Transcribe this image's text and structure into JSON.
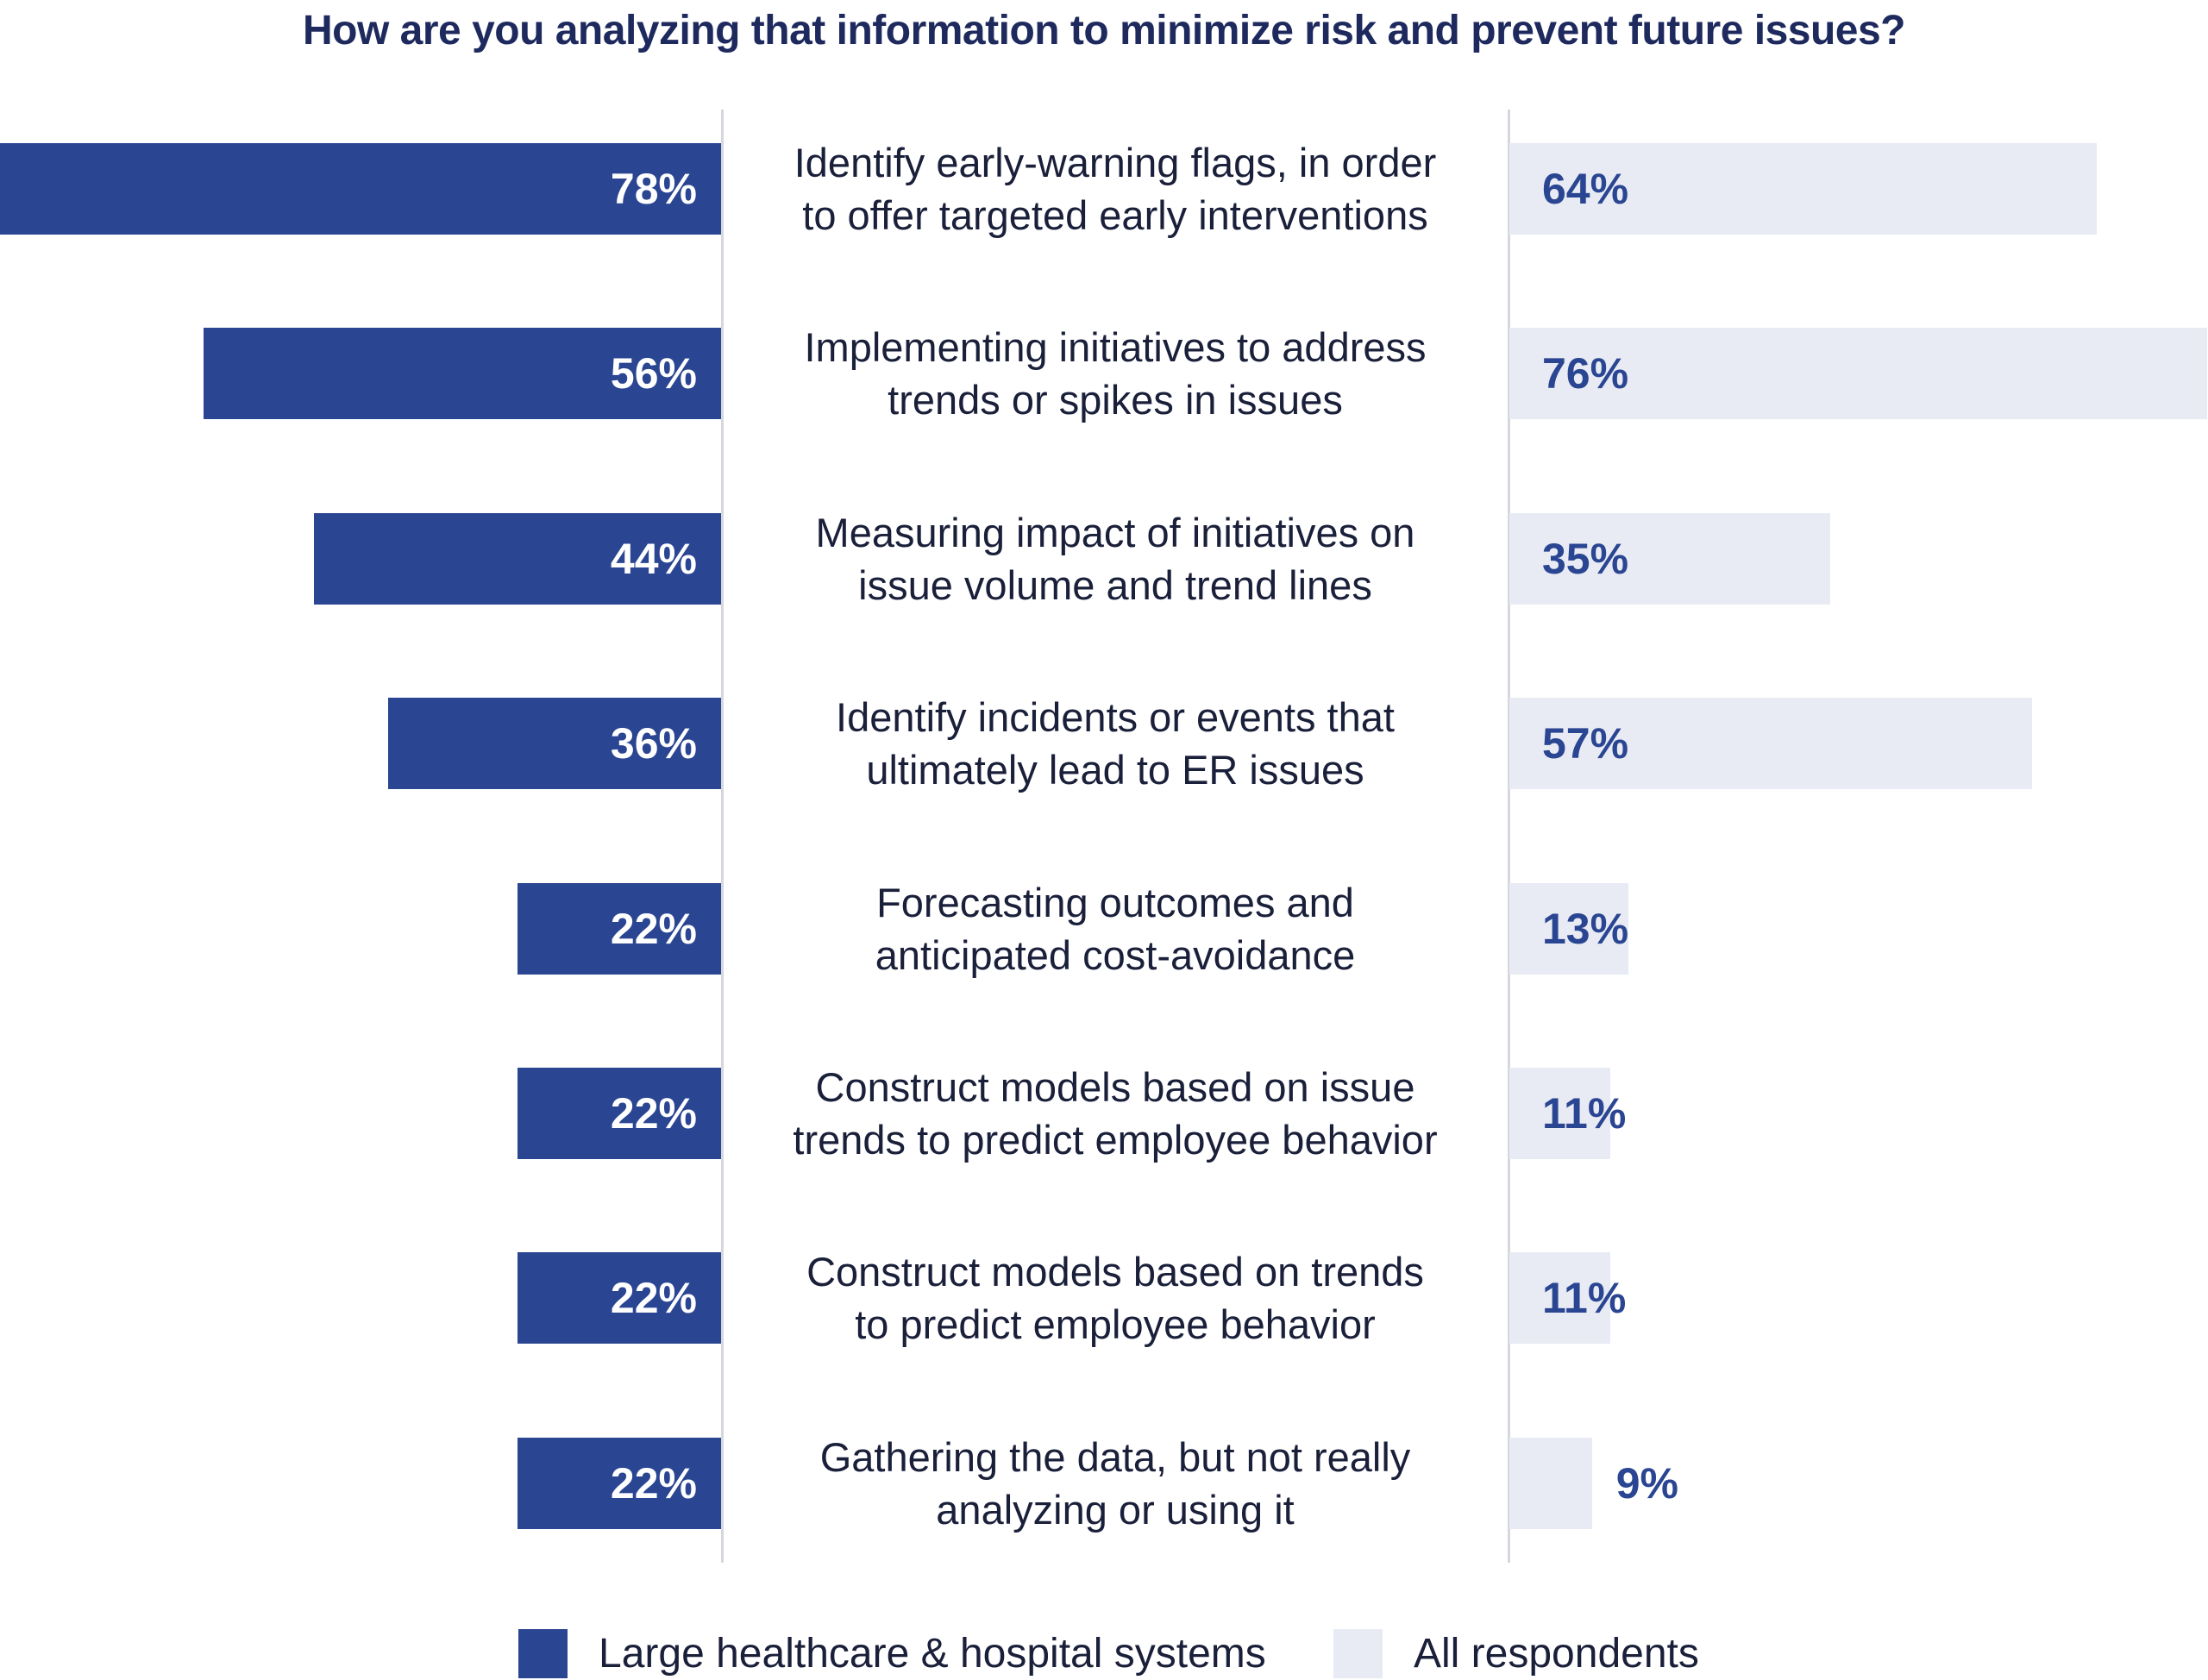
{
  "chart_data": {
    "type": "bar",
    "orientation": "horizontal-diverging",
    "title": "How are you analyzing that information to minimize risk and prevent future issues?",
    "categories": [
      [
        "Identify early-warning flags, in order",
        "to offer targeted early interventions"
      ],
      [
        "Implementing initiatives to address",
        "trends or spikes in issues"
      ],
      [
        "Measuring impact of initiatives on",
        "issue volume and trend lines"
      ],
      [
        "Identify incidents or events that",
        "ultimately lead to ER issues"
      ],
      [
        "Forecasting outcomes and",
        "anticipated cost-avoidance"
      ],
      [
        "Construct models based on issue",
        "trends to predict employee behavior"
      ],
      [
        "Construct models based on trends",
        "to predict employee behavior"
      ],
      [
        "Gathering the data, but not really",
        "analyzing or using it"
      ]
    ],
    "series": [
      {
        "name": "Large healthcare & hospital systems",
        "color": "#2a4592",
        "values": [
          78,
          56,
          44,
          36,
          22,
          22,
          22,
          22
        ]
      },
      {
        "name": "All respondents",
        "color": "#e8ebf3",
        "values": [
          64,
          76,
          35,
          57,
          13,
          11,
          11,
          9
        ]
      }
    ],
    "value_suffix": "%",
    "xlim": [
      0,
      100
    ],
    "legend": "bottom-center",
    "grid": false
  }
}
